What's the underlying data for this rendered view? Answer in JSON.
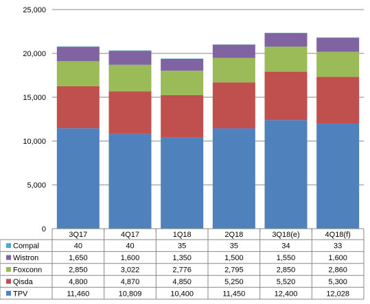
{
  "chart_data": {
    "type": "bar",
    "stacked": true,
    "title": "",
    "xlabel": "",
    "ylabel": "",
    "ylim": [
      0,
      25000
    ],
    "y_ticks": [
      "0",
      "5,000",
      "10,000",
      "15,000",
      "20,000",
      "25,000"
    ],
    "y_tick_values": [
      0,
      5000,
      10000,
      15000,
      20000,
      25000
    ],
    "grid": true,
    "legend": "data-table-below",
    "categories": [
      "3Q17",
      "4Q17",
      "1Q18",
      "2Q18",
      "3Q18(e)",
      "4Q18(f)"
    ],
    "series": [
      {
        "name": "TPV",
        "color": "#4f81bd",
        "values": [
          11460,
          10809,
          10400,
          11450,
          12400,
          12028
        ],
        "labels": [
          "11,460",
          "10,809",
          "10,400",
          "11,450",
          "12,400",
          "12,028"
        ]
      },
      {
        "name": "Qisda",
        "color": "#c0504d",
        "values": [
          4800,
          4870,
          4850,
          5250,
          5520,
          5300
        ],
        "labels": [
          "4,800",
          "4,870",
          "4,850",
          "5,250",
          "5,520",
          "5,300"
        ]
      },
      {
        "name": "Foxconn",
        "color": "#9bbb59",
        "values": [
          2850,
          3022,
          2776,
          2795,
          2850,
          2860
        ],
        "labels": [
          "2,850",
          "3,022",
          "2,776",
          "2,795",
          "2,850",
          "2,860"
        ]
      },
      {
        "name": "Wistron",
        "color": "#8064a2",
        "values": [
          1650,
          1600,
          1350,
          1500,
          1550,
          1600
        ],
        "labels": [
          "1,650",
          "1,600",
          "1,350",
          "1,500",
          "1,550",
          "1,600"
        ]
      },
      {
        "name": "Compal",
        "color": "#4bacc6",
        "values": [
          40,
          40,
          35,
          35,
          34,
          33
        ],
        "labels": [
          "40",
          "40",
          "35",
          "35",
          "34",
          "33"
        ]
      }
    ],
    "table_row_order": [
      "Compal",
      "Wistron",
      "Foxconn",
      "Qisda",
      "TPV"
    ]
  }
}
